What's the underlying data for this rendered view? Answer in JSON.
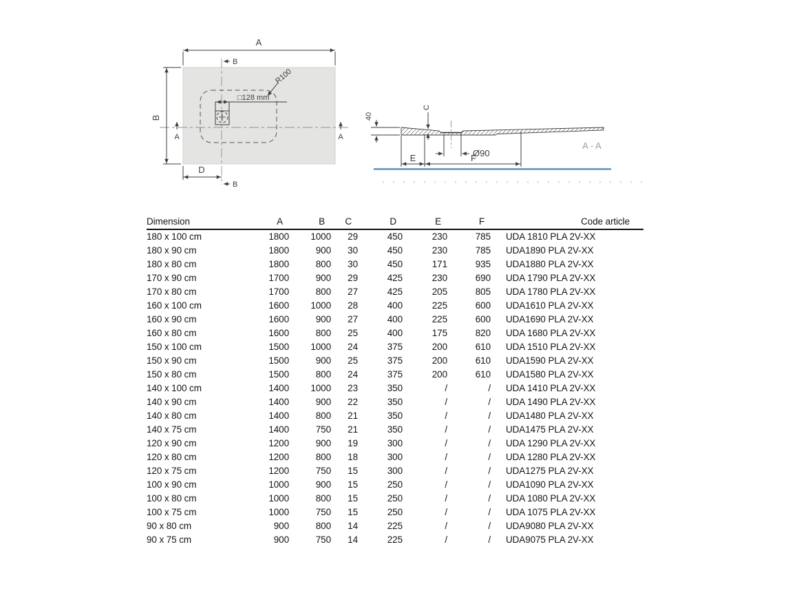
{
  "plan_view": {
    "dim_a": "A",
    "section_b_top": "B",
    "dim_b_side": "B",
    "section_a_left": "A",
    "section_a_right": "A",
    "drain_size_label": "□128 mm",
    "corner_radius_label": "R100",
    "dim_d": "D",
    "section_b_bottom": "B"
  },
  "section_view": {
    "edge_height_label": "40",
    "dim_c": "C",
    "drain_diameter_label": "Ø90",
    "dim_e": "E",
    "dim_f": "F",
    "section_name": "A - A"
  },
  "table": {
    "headers": [
      "Dimension",
      "A",
      "B",
      "C",
      "D",
      "E",
      "F",
      "Code article"
    ],
    "rows": [
      [
        "180 x 100 cm",
        "1800",
        "1000",
        "29",
        "450",
        "230",
        "785",
        "UDA 1810 PLA 2V-XX"
      ],
      [
        "180 x 90 cm",
        "1800",
        "900",
        "30",
        "450",
        "230",
        "785",
        "UDA1890 PLA 2V-XX"
      ],
      [
        "180 x 80 cm",
        "1800",
        "800",
        "30",
        "450",
        "171",
        "935",
        "UDA1880 PLA 2V-XX"
      ],
      [
        "170 x 90 cm",
        "1700",
        "900",
        "29",
        "425",
        "230",
        "690",
        "UDA 1790 PLA 2V-XX"
      ],
      [
        "170 x 80 cm",
        "1700",
        "800",
        "27",
        "425",
        "205",
        "805",
        "UDA 1780 PLA 2V-XX"
      ],
      [
        "160 x 100 cm",
        "1600",
        "1000",
        "28",
        "400",
        "225",
        "600",
        "UDA1610 PLA 2V-XX"
      ],
      [
        "160 x 90 cm",
        "1600",
        "900",
        "27",
        "400",
        "225",
        "600",
        "UDA1690 PLA 2V-XX"
      ],
      [
        "160 x 80 cm",
        "1600",
        "800",
        "25",
        "400",
        "175",
        "820",
        "UDA 1680 PLA 2V-XX"
      ],
      [
        "150 x 100 cm",
        "1500",
        "1000",
        "24",
        "375",
        "200",
        "610",
        "UDA 1510 PLA 2V-XX"
      ],
      [
        "150 x 90 cm",
        "1500",
        "900",
        "25",
        "375",
        "200",
        "610",
        "UDA1590 PLA 2V-XX"
      ],
      [
        "150 x 80 cm",
        "1500",
        "800",
        "24",
        "375",
        "200",
        "610",
        "UDA1580 PLA 2V-XX"
      ],
      [
        "140 x 100 cm",
        "1400",
        "1000",
        "23",
        "350",
        "/",
        "/",
        "UDA 1410 PLA 2V-XX"
      ],
      [
        "140 x 90 cm",
        "1400",
        "900",
        "22",
        "350",
        "/",
        "/",
        "UDA 1490 PLA 2V-XX"
      ],
      [
        "140 x 80 cm",
        "1400",
        "800",
        "21",
        "350",
        "/",
        "/",
        "UDA1480 PLA 2V-XX"
      ],
      [
        "140 x 75 cm",
        "1400",
        "750",
        "21",
        "350",
        "/",
        "/",
        "UDA1475 PLA 2V-XX"
      ],
      [
        "120 x 90 cm",
        "1200",
        "900",
        "19",
        "300",
        "/",
        "/",
        "UDA 1290 PLA 2V-XX"
      ],
      [
        "120 x 80 cm",
        "1200",
        "800",
        "18",
        "300",
        "/",
        "/",
        "UDA 1280 PLA 2V-XX"
      ],
      [
        "120 x 75 cm",
        "1200",
        "750",
        "15",
        "300",
        "/",
        "/",
        "UDA1275 PLA 2V-XX"
      ],
      [
        "100 x 90 cm",
        "1000",
        "900",
        "15",
        "250",
        "/",
        "/",
        "UDA1090 PLA 2V-XX"
      ],
      [
        "100 x 80 cm",
        "1000",
        "800",
        "15",
        "250",
        "/",
        "/",
        "UDA 1080 PLA 2V-XX"
      ],
      [
        "100 x 75 cm",
        "1000",
        "750",
        "15",
        "250",
        "/",
        "/",
        "UDA 1075 PLA 2V-XX"
      ],
      [
        "90 x 80 cm",
        "900",
        "800",
        "14",
        "225",
        "/",
        "/",
        "UDA9080 PLA 2V-XX"
      ],
      [
        "90 x 75 cm",
        "900",
        "750",
        "14",
        "225",
        "/",
        "/",
        "UDA9075 PLA 2V-XX"
      ]
    ]
  },
  "colors": {
    "tray_fill": "#e4e4e3",
    "drawing_line": "#3d3d3d",
    "floor_line_blue": "#5e90c1",
    "section_label_gray": "#9c9c9c",
    "table_text": "#141414"
  }
}
